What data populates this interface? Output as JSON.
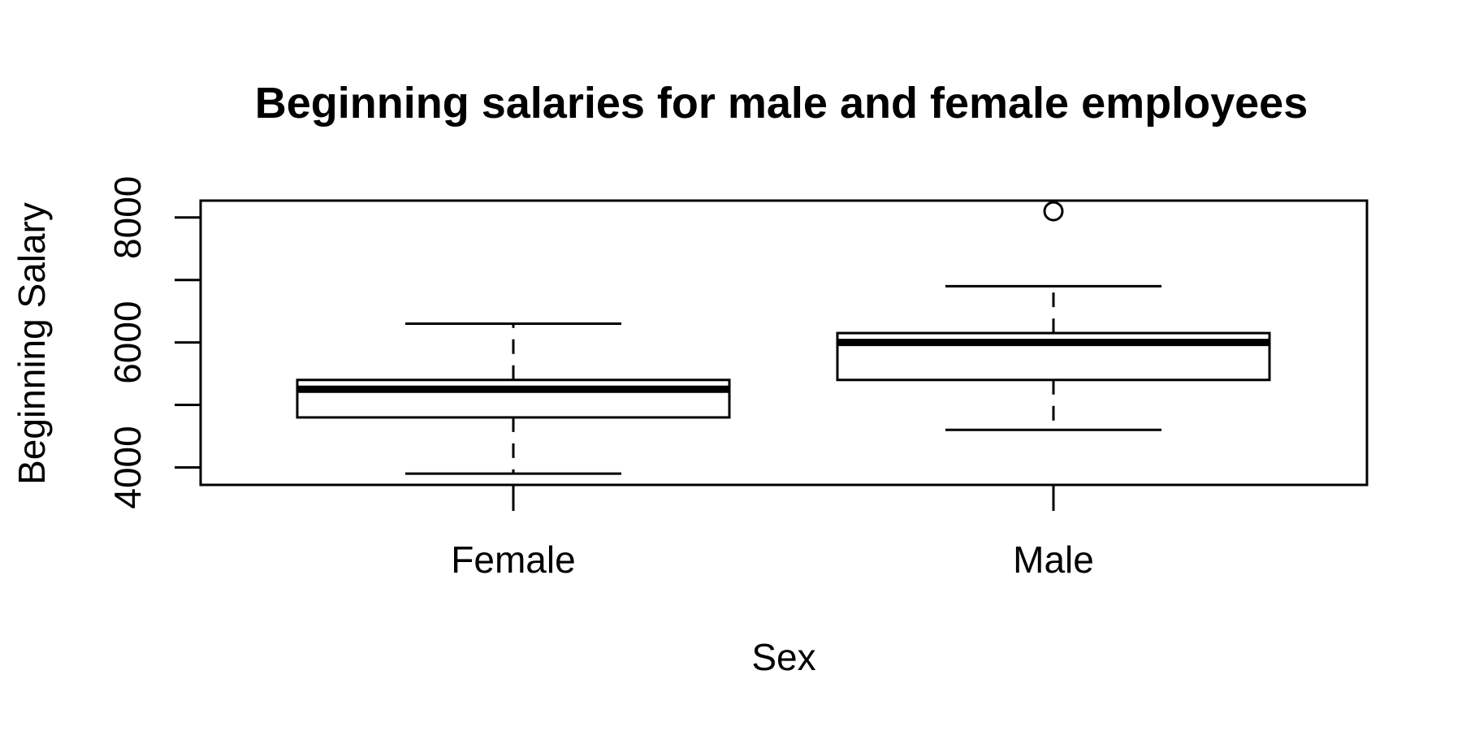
{
  "chart_data": {
    "type": "box",
    "title": "Beginning salaries for male and female employees",
    "xlabel": "Sex",
    "ylabel": "Beginning Salary",
    "categories": [
      "Female",
      "Male"
    ],
    "boxes": [
      {
        "name": "Female",
        "lower_whisker": 3900,
        "q1": 4800,
        "median": 5250,
        "q3": 5400,
        "upper_whisker": 6300,
        "outliers": []
      },
      {
        "name": "Male",
        "lower_whisker": 4600,
        "q1": 5400,
        "median": 6000,
        "q3": 6150,
        "upper_whisker": 6900,
        "outliers": [
          8100
        ]
      }
    ],
    "yticks": [
      4000,
      5000,
      6000,
      7000,
      8000
    ],
    "ytick_labels": [
      "4000",
      "",
      "6000",
      "",
      "8000"
    ],
    "ylim": [
      3720,
      8270
    ],
    "grid": false,
    "colors": {
      "line": "#000000",
      "box_fill": "#ffffff",
      "background": "#ffffff"
    }
  }
}
